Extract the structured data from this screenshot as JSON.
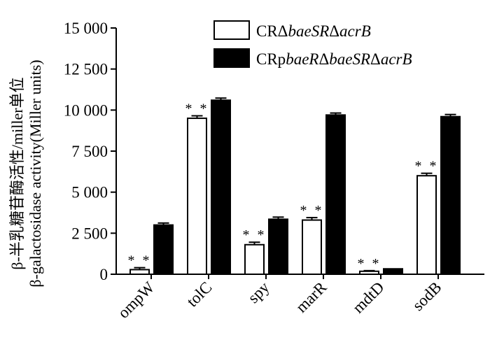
{
  "chart_data": {
    "type": "bar",
    "categories": [
      "ompW",
      "tolC",
      "spy",
      "marR",
      "mdtD",
      "sodB"
    ],
    "series": [
      {
        "name": "CRΔbaeSRΔacrB",
        "name_parts": [
          {
            "text": "CRΔ",
            "italic": false
          },
          {
            "text": "baeSR",
            "italic": true
          },
          {
            "text": "Δ",
            "italic": false
          },
          {
            "text": "acrB",
            "italic": true
          }
        ],
        "fill": "#ffffff",
        "values": [
          280,
          9500,
          1800,
          3300,
          180,
          6000
        ],
        "errors": [
          120,
          150,
          150,
          150,
          40,
          150
        ],
        "annotations": [
          "**",
          "**",
          "**",
          "**",
          "**",
          "**"
        ]
      },
      {
        "name": "CRpbaeRΔbaeSRΔacrB",
        "name_parts": [
          {
            "text": "CRp",
            "italic": false
          },
          {
            "text": "baeR",
            "italic": true
          },
          {
            "text": "Δ",
            "italic": false
          },
          {
            "text": "baeSR",
            "italic": true
          },
          {
            "text": "Δ",
            "italic": false
          },
          {
            "text": "acrB",
            "italic": true
          }
        ],
        "fill": "#000000",
        "values": [
          3000,
          10600,
          3350,
          9700,
          330,
          9600
        ],
        "errors": [
          120,
          130,
          130,
          120,
          0,
          130
        ],
        "annotations": [
          "",
          "",
          "",
          "",
          "",
          ""
        ]
      }
    ],
    "yticks": [
      0,
      2500,
      5000,
      7500,
      10000,
      12500,
      15000
    ],
    "ytick_labels": [
      "0",
      "2 500",
      "5 000",
      "7 500",
      "10 000",
      "12 500",
      "15 000"
    ],
    "ylim": [
      0,
      15000
    ],
    "ylabel_line1": "β-半乳糖苷酶活性/miller单位",
    "ylabel_line2": "β-galactosidase activity(Miller units)",
    "xlabel": "",
    "legend_position": "top-right",
    "grid": false,
    "colors": {
      "axis": "#000000",
      "white_bar": "#ffffff",
      "black_bar": "#000000"
    }
  }
}
